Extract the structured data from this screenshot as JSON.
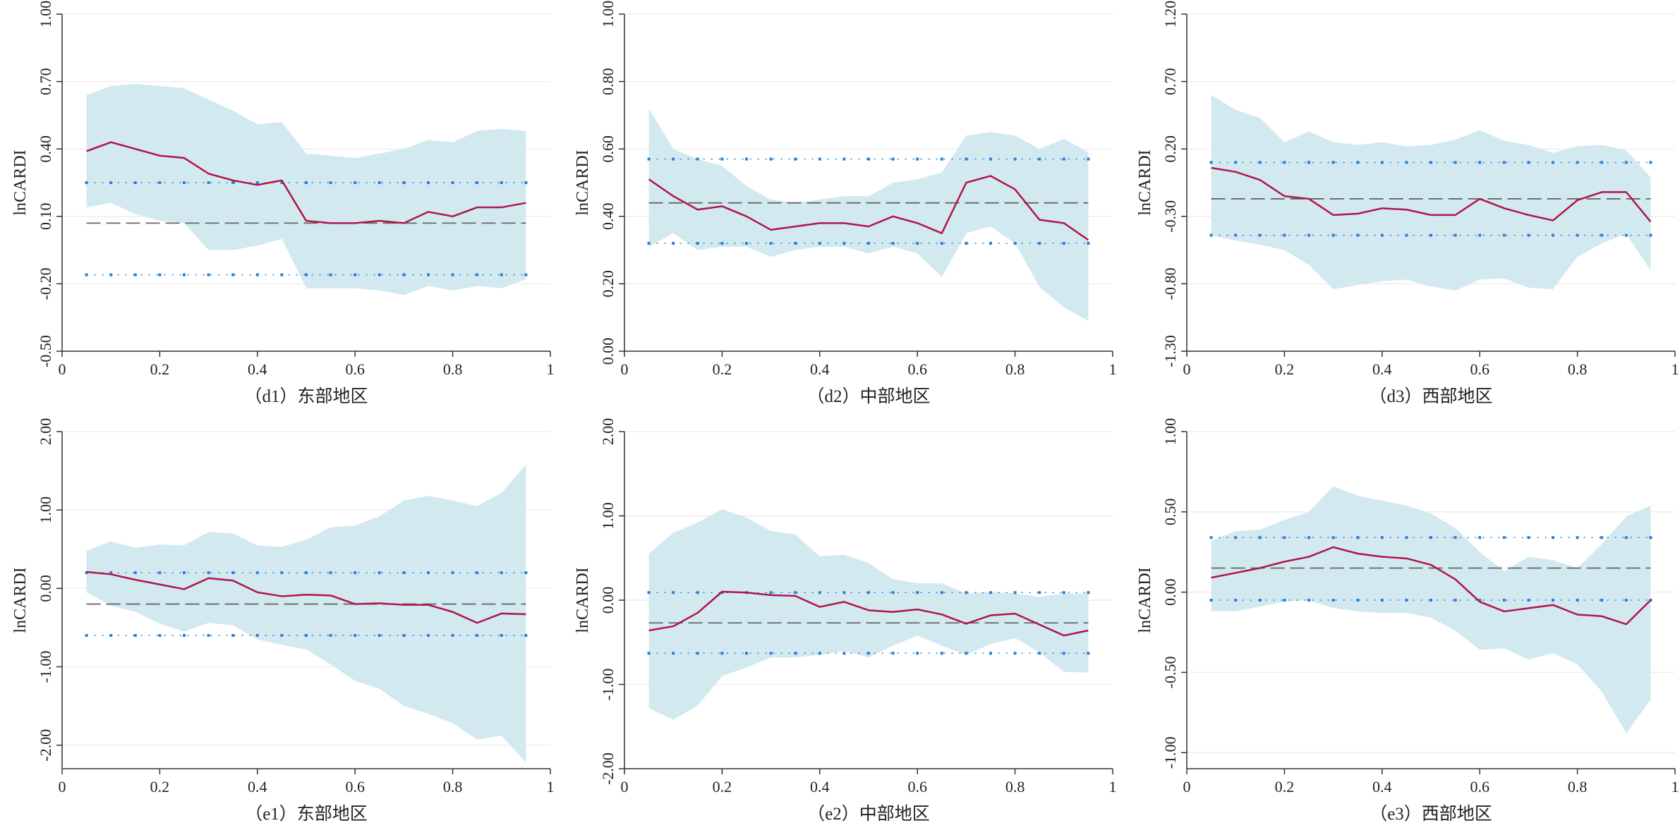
{
  "colors": {
    "ci_band": "#d3e9f0",
    "quantile_line": "#b0154a",
    "ols_line": "#666666",
    "ols_ci_line": "#2a7fd4",
    "ols_ci_marker": "#2a7fd4",
    "gridline": "#eeeeee"
  },
  "chart_data": [
    {
      "type": "line",
      "caption": "（d1）东部地区",
      "ylabel": "lnCARDI",
      "xlim": [
        0,
        1
      ],
      "ylim": [
        -0.5,
        1.0
      ],
      "xticks": [
        "0",
        "0.2",
        "0.4",
        "0.6",
        "0.8",
        "1"
      ],
      "yticks": [
        "-0.50",
        "-0.20",
        "0.10",
        "0.40",
        "0.70",
        "1.00"
      ],
      "x": [
        0.05,
        0.1,
        0.15,
        0.2,
        0.25,
        0.3,
        0.35,
        0.4,
        0.45,
        0.5,
        0.55,
        0.6,
        0.65,
        0.7,
        0.75,
        0.8,
        0.85,
        0.9,
        0.95
      ],
      "quantile_estimate": [
        0.39,
        0.43,
        0.4,
        0.37,
        0.36,
        0.29,
        0.26,
        0.24,
        0.26,
        0.08,
        0.07,
        0.07,
        0.08,
        0.07,
        0.12,
        0.1,
        0.14,
        0.14,
        0.16
      ],
      "ci_upper": [
        0.64,
        0.68,
        0.69,
        0.68,
        0.67,
        0.62,
        0.57,
        0.51,
        0.52,
        0.38,
        0.37,
        0.36,
        0.38,
        0.4,
        0.44,
        0.43,
        0.48,
        0.49,
        0.48
      ],
      "ci_lower": [
        0.14,
        0.16,
        0.11,
        0.08,
        0.07,
        -0.05,
        -0.05,
        -0.03,
        0.0,
        -0.22,
        -0.22,
        -0.22,
        -0.23,
        -0.25,
        -0.21,
        -0.23,
        -0.21,
        -0.22,
        -0.18
      ],
      "ols_estimate": 0.07,
      "ols_ci": [
        -0.16,
        0.25
      ]
    },
    {
      "type": "line",
      "caption": "（d2）中部地区",
      "ylabel": "lnCARDI",
      "xlim": [
        0,
        1
      ],
      "ylim": [
        0.0,
        1.0
      ],
      "xticks": [
        "0",
        "0.2",
        "0.4",
        "0.6",
        "0.8",
        "1"
      ],
      "yticks": [
        "0.00",
        "0.20",
        "0.40",
        "0.60",
        "0.80",
        "1.00"
      ],
      "x": [
        0.05,
        0.1,
        0.15,
        0.2,
        0.25,
        0.3,
        0.35,
        0.4,
        0.45,
        0.5,
        0.55,
        0.6,
        0.65,
        0.7,
        0.75,
        0.8,
        0.85,
        0.9,
        0.95
      ],
      "quantile_estimate": [
        0.51,
        0.46,
        0.42,
        0.43,
        0.4,
        0.36,
        0.37,
        0.38,
        0.38,
        0.37,
        0.4,
        0.38,
        0.35,
        0.5,
        0.52,
        0.48,
        0.39,
        0.38,
        0.33
      ],
      "ci_upper": [
        0.72,
        0.6,
        0.57,
        0.55,
        0.49,
        0.45,
        0.44,
        0.45,
        0.46,
        0.46,
        0.5,
        0.51,
        0.53,
        0.64,
        0.65,
        0.64,
        0.6,
        0.63,
        0.59
      ],
      "ci_lower": [
        0.31,
        0.35,
        0.3,
        0.31,
        0.31,
        0.28,
        0.3,
        0.31,
        0.31,
        0.29,
        0.31,
        0.29,
        0.22,
        0.35,
        0.37,
        0.32,
        0.19,
        0.13,
        0.09
      ],
      "ols_estimate": 0.44,
      "ols_ci": [
        0.32,
        0.57
      ]
    },
    {
      "type": "line",
      "caption": "（d3）西部地区",
      "ylabel": "lnCARDI",
      "xlim": [
        0,
        1
      ],
      "ylim": [
        -1.3,
        1.2
      ],
      "xticks": [
        "0",
        "0.2",
        "0.4",
        "0.6",
        "0.8",
        "1"
      ],
      "yticks": [
        "-1.30",
        "-0.80",
        "-0.30",
        "0.20",
        "0.70",
        "1.20"
      ],
      "x": [
        0.05,
        0.1,
        0.15,
        0.2,
        0.25,
        0.3,
        0.35,
        0.4,
        0.45,
        0.5,
        0.55,
        0.6,
        0.65,
        0.7,
        0.75,
        0.8,
        0.85,
        0.9,
        0.95
      ],
      "quantile_estimate": [
        0.06,
        0.03,
        -0.03,
        -0.15,
        -0.17,
        -0.29,
        -0.28,
        -0.24,
        -0.25,
        -0.29,
        -0.29,
        -0.17,
        -0.24,
        -0.29,
        -0.33,
        -0.18,
        -0.12,
        -0.12,
        -0.34
      ],
      "ci_upper": [
        0.6,
        0.49,
        0.43,
        0.25,
        0.33,
        0.25,
        0.23,
        0.25,
        0.22,
        0.23,
        0.27,
        0.34,
        0.26,
        0.23,
        0.17,
        0.22,
        0.23,
        0.19,
        -0.01
      ],
      "ci_lower": [
        -0.44,
        -0.48,
        -0.51,
        -0.55,
        -0.66,
        -0.84,
        -0.81,
        -0.78,
        -0.77,
        -0.82,
        -0.85,
        -0.77,
        -0.76,
        -0.83,
        -0.84,
        -0.6,
        -0.5,
        -0.43,
        -0.7
      ],
      "ols_estimate": -0.17,
      "ols_ci": [
        -0.44,
        0.1
      ]
    },
    {
      "type": "line",
      "caption": "（e1）东部地区",
      "ylabel": "lnCARDI",
      "xlim": [
        0,
        1
      ],
      "ylim": [
        -2.3,
        2.0
      ],
      "xticks": [
        "0",
        "0.2",
        "0.4",
        "0.6",
        "0.8",
        "1"
      ],
      "yticks": [
        "-2.00",
        "-1.00",
        "0.00",
        "1.00",
        "2.00"
      ],
      "x": [
        0.05,
        0.1,
        0.15,
        0.2,
        0.25,
        0.3,
        0.35,
        0.4,
        0.45,
        0.5,
        0.55,
        0.6,
        0.65,
        0.7,
        0.75,
        0.8,
        0.85,
        0.9,
        0.95
      ],
      "quantile_estimate": [
        0.21,
        0.18,
        0.11,
        0.05,
        -0.01,
        0.13,
        0.1,
        -0.05,
        -0.1,
        -0.08,
        -0.09,
        -0.2,
        -0.19,
        -0.21,
        -0.21,
        -0.3,
        -0.44,
        -0.32,
        -0.33
      ],
      "ci_upper": [
        0.48,
        0.6,
        0.52,
        0.56,
        0.55,
        0.72,
        0.7,
        0.55,
        0.53,
        0.62,
        0.78,
        0.8,
        0.92,
        1.12,
        1.18,
        1.12,
        1.05,
        1.22,
        1.58
      ],
      "ci_lower": [
        -0.05,
        -0.22,
        -0.3,
        -0.45,
        -0.55,
        -0.44,
        -0.47,
        -0.65,
        -0.72,
        -0.78,
        -0.97,
        -1.18,
        -1.28,
        -1.5,
        -1.6,
        -1.72,
        -1.93,
        -1.88,
        -2.22
      ],
      "ols_estimate": -0.2,
      "ols_ci": [
        -0.6,
        0.2
      ]
    },
    {
      "type": "line",
      "caption": "（e2）中部地区",
      "ylabel": "lnCARDI",
      "xlim": [
        0,
        1
      ],
      "ylim": [
        -2.0,
        2.0
      ],
      "xticks": [
        "0",
        "0.2",
        "0.4",
        "0.6",
        "0.8",
        "1"
      ],
      "yticks": [
        "-2.00",
        "-1.00",
        "0.00",
        "1.00",
        "2.00"
      ],
      "x": [
        0.05,
        0.1,
        0.15,
        0.2,
        0.25,
        0.3,
        0.35,
        0.4,
        0.45,
        0.5,
        0.55,
        0.6,
        0.65,
        0.7,
        0.75,
        0.8,
        0.85,
        0.9,
        0.95
      ],
      "quantile_estimate": [
        -0.36,
        -0.31,
        -0.15,
        0.1,
        0.09,
        0.06,
        0.05,
        -0.08,
        -0.02,
        -0.12,
        -0.14,
        -0.11,
        -0.17,
        -0.28,
        -0.18,
        -0.16,
        -0.29,
        -0.42,
        -0.36
      ],
      "ci_upper": [
        0.55,
        0.8,
        0.92,
        1.08,
        0.98,
        0.82,
        0.78,
        0.52,
        0.54,
        0.44,
        0.25,
        0.2,
        0.2,
        0.08,
        0.1,
        0.08,
        0.04,
        0.08,
        0.08
      ],
      "ci_lower": [
        -1.28,
        -1.42,
        -1.25,
        -0.9,
        -0.8,
        -0.68,
        -0.68,
        -0.65,
        -0.6,
        -0.68,
        -0.54,
        -0.42,
        -0.54,
        -0.65,
        -0.52,
        -0.45,
        -0.62,
        -0.85,
        -0.86
      ],
      "ols_estimate": -0.27,
      "ols_ci": [
        -0.63,
        0.09
      ]
    },
    {
      "type": "line",
      "caption": "（e3）西部地区",
      "ylabel": "lnCARDI",
      "xlim": [
        0,
        1
      ],
      "ylim": [
        -1.1,
        1.0
      ],
      "xticks": [
        "0",
        "0.2",
        "0.4",
        "0.6",
        "0.8",
        "1"
      ],
      "yticks": [
        "-1.00",
        "-0.50",
        "0.00",
        "0.50",
        "1.00"
      ],
      "x": [
        0.05,
        0.1,
        0.15,
        0.2,
        0.25,
        0.3,
        0.35,
        0.4,
        0.45,
        0.5,
        0.55,
        0.6,
        0.65,
        0.7,
        0.75,
        0.8,
        0.85,
        0.9,
        0.95
      ],
      "quantile_estimate": [
        0.09,
        0.12,
        0.15,
        0.19,
        0.22,
        0.28,
        0.24,
        0.22,
        0.21,
        0.17,
        0.08,
        -0.06,
        -0.12,
        -0.1,
        -0.08,
        -0.14,
        -0.15,
        -0.2,
        -0.05
      ],
      "ci_upper": [
        0.32,
        0.38,
        0.39,
        0.45,
        0.5,
        0.66,
        0.6,
        0.57,
        0.54,
        0.49,
        0.4,
        0.25,
        0.13,
        0.22,
        0.2,
        0.15,
        0.3,
        0.47,
        0.54
      ],
      "ci_lower": [
        -0.12,
        -0.12,
        -0.09,
        -0.06,
        -0.05,
        -0.1,
        -0.12,
        -0.13,
        -0.13,
        -0.16,
        -0.24,
        -0.36,
        -0.35,
        -0.42,
        -0.38,
        -0.45,
        -0.62,
        -0.88,
        -0.67
      ],
      "ols_estimate": 0.15,
      "ols_ci": [
        -0.05,
        0.34
      ]
    }
  ]
}
